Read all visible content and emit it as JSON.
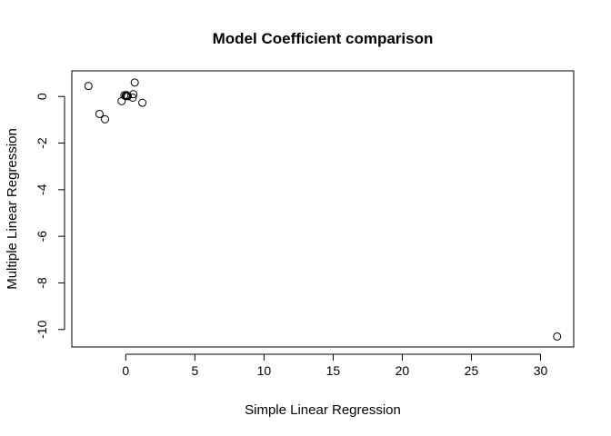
{
  "chart_data": {
    "type": "scatter",
    "title": "Model Coefficient comparison",
    "xlabel": "Simple Linear Regression",
    "ylabel": "Multiple Linear Regression",
    "xlim": [
      -3.9,
      32.4
    ],
    "ylim": [
      -10.75,
      1.1
    ],
    "x_ticks": [
      0,
      5,
      10,
      15,
      20,
      25,
      30
    ],
    "y_ticks": [
      0,
      -2,
      -4,
      -6,
      -8,
      -10
    ],
    "x": [
      -2.7,
      -1.9,
      -1.5,
      -0.3,
      -0.1,
      0.0,
      0.05,
      0.1,
      0.15,
      0.5,
      0.55,
      0.65,
      1.2,
      31.2
    ],
    "y": [
      0.45,
      -0.75,
      -0.98,
      -0.2,
      0.05,
      0.02,
      0.06,
      0.03,
      0.01,
      -0.05,
      0.1,
      0.6,
      -0.27,
      -10.3
    ]
  }
}
